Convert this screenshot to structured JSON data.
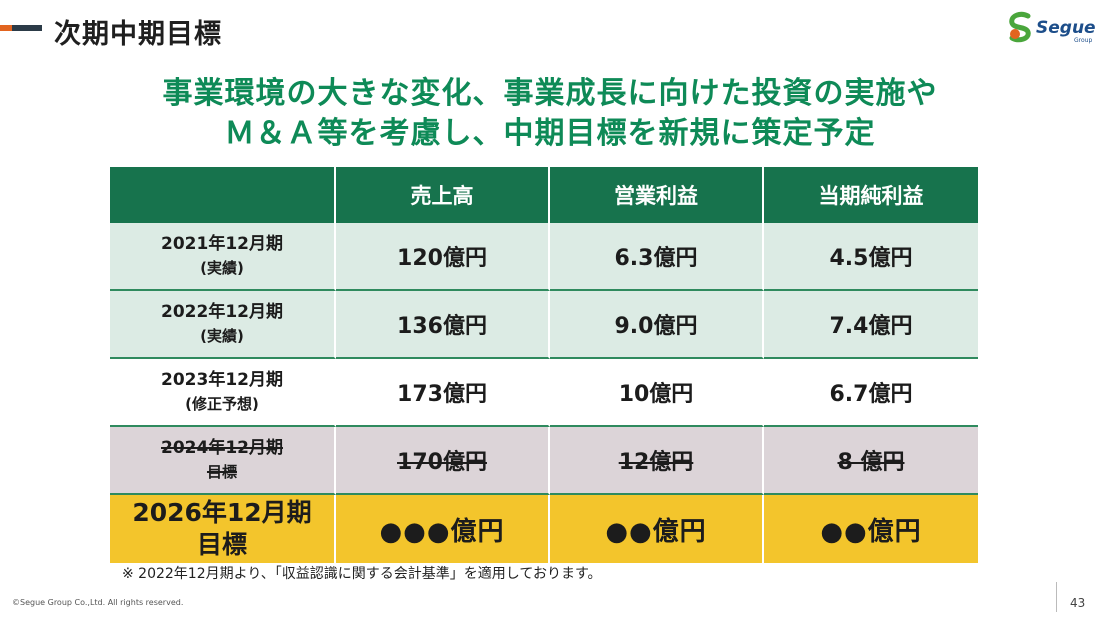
{
  "page": {
    "title": "次期中期目標",
    "headline_line1": "事業環境の大きな変化、事業成長に向けた投資の実施や",
    "headline_line2": "Ｍ＆Ａ等を考慮し、中期目標を新規に策定予定"
  },
  "logo": {
    "name": "Segue",
    "sub": "Group"
  },
  "table": {
    "headers": [
      "",
      "売上高",
      "営業利益",
      "当期純利益"
    ],
    "rows": [
      {
        "label": "2021年12月期",
        "sub": "(実績)",
        "values": [
          "120億円",
          "6.3億円",
          "4.5億円"
        ]
      },
      {
        "label": "2022年12月期",
        "sub": "(実績)",
        "values": [
          "136億円",
          "9.0億円",
          "7.4億円"
        ]
      },
      {
        "label": "2023年12月期",
        "sub": "(修正予想)",
        "values": [
          "173億円",
          "10億円",
          "6.7億円"
        ]
      },
      {
        "label": "2024年12月期",
        "sub": "目標",
        "values": [
          "170億円",
          "12億円",
          "8 億円"
        ],
        "struck": true
      },
      {
        "label": "2026年12月期",
        "sub": "目標",
        "values": [
          "●●●億円",
          "●●億円",
          "●●億円"
        ]
      }
    ]
  },
  "footer": {
    "note": "※ 2022年12月期より、「収益認識に関する会計基準」を適用しております。",
    "copyright": "©Segue Group Co.,Ltd. All rights reserved.",
    "page_number": "43"
  },
  "colors": {
    "header_green": "#17734d",
    "headline_green": "#0e8a57",
    "target_yellow": "#f3c52c",
    "accent_orange": "#e2641f"
  }
}
